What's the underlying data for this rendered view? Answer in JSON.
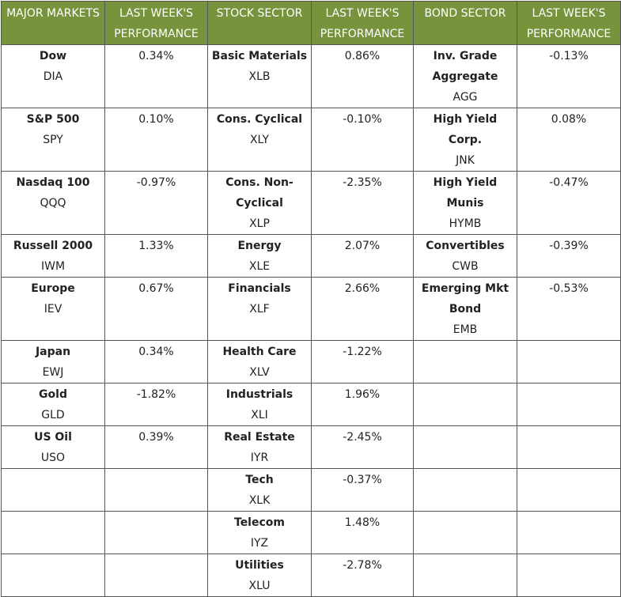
{
  "headers": [
    "MAJOR MARKETS",
    "LAST WEEK'S PERFORMANCE",
    "STOCK SECTOR",
    "LAST WEEK'S PERFORMANCE",
    "BOND SECTOR",
    "LAST WEEK'S PERFORMANCE"
  ],
  "header_color": "#77933c",
  "rows": [
    {
      "m_name": "Dow",
      "m_ticker": "DIA",
      "m_perf": "0.34%",
      "s_name": "Basic Materials",
      "s_ticker": "XLB",
      "s_perf": "0.86%",
      "b_name": "Inv. Grade Aggregate",
      "b_ticker": "AGG",
      "b_perf": "-0.13%"
    },
    {
      "m_name": "S&P 500",
      "m_ticker": "SPY",
      "m_perf": "0.10%",
      "s_name": "Cons. Cyclical",
      "s_ticker": "XLY",
      "s_perf": "-0.10%",
      "b_name": "High Yield Corp.",
      "b_ticker": "JNK",
      "b_perf": "0.08%"
    },
    {
      "m_name": "Nasdaq 100",
      "m_ticker": "QQQ",
      "m_perf": "-0.97%",
      "s_name": "Cons. Non-Cyclical",
      "s_ticker": "XLP",
      "s_perf": "-2.35%",
      "b_name": "High Yield Munis",
      "b_ticker": "HYMB",
      "b_perf": "-0.47%"
    },
    {
      "m_name": "Russell 2000",
      "m_ticker": "IWM",
      "m_perf": "1.33%",
      "s_name": "Energy",
      "s_ticker": "XLE",
      "s_perf": "2.07%",
      "b_name": "Convertibles",
      "b_ticker": "CWB",
      "b_perf": "-0.39%"
    },
    {
      "m_name": "Europe",
      "m_ticker": "IEV",
      "m_perf": "0.67%",
      "s_name": "Financials",
      "s_ticker": "XLF",
      "s_perf": "2.66%",
      "b_name": "Emerging Mkt Bond",
      "b_ticker": "EMB",
      "b_perf": "-0.53%"
    },
    {
      "m_name": "Japan",
      "m_ticker": "EWJ",
      "m_perf": "0.34%",
      "s_name": "Health Care",
      "s_ticker": "XLV",
      "s_perf": "-1.22%",
      "b_name": "",
      "b_ticker": "",
      "b_perf": ""
    },
    {
      "m_name": "Gold",
      "m_ticker": "GLD",
      "m_perf": "-1.82%",
      "s_name": "Industrials",
      "s_ticker": "XLI",
      "s_perf": "1.96%",
      "b_name": "",
      "b_ticker": "",
      "b_perf": ""
    },
    {
      "m_name": "US Oil",
      "m_ticker": "USO",
      "m_perf": "0.39%",
      "s_name": "Real Estate",
      "s_ticker": "IYR",
      "s_perf": "-2.45%",
      "b_name": "",
      "b_ticker": "",
      "b_perf": ""
    },
    {
      "m_name": "",
      "m_ticker": "",
      "m_perf": "",
      "s_name": "Tech",
      "s_ticker": "XLK",
      "s_perf": "-0.37%",
      "b_name": "",
      "b_ticker": "",
      "b_perf": ""
    },
    {
      "m_name": "",
      "m_ticker": "",
      "m_perf": "",
      "s_name": "Telecom",
      "s_ticker": "IYZ",
      "s_perf": "1.48%",
      "b_name": "",
      "b_ticker": "",
      "b_perf": ""
    },
    {
      "m_name": "",
      "m_ticker": "",
      "m_perf": "",
      "s_name": "Utilities",
      "s_ticker": "XLU",
      "s_perf": "-2.78%",
      "b_name": "",
      "b_ticker": "",
      "b_perf": ""
    }
  ]
}
